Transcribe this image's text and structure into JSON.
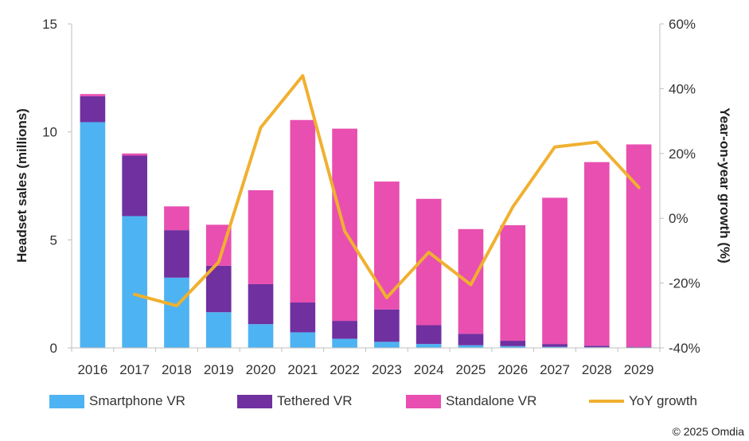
{
  "chart_data": {
    "type": "bar",
    "stacked": true,
    "categories": [
      "2016",
      "2017",
      "2018",
      "2019",
      "2020",
      "2021",
      "2022",
      "2023",
      "2024",
      "2025",
      "2026",
      "2027",
      "2028",
      "2029"
    ],
    "series": [
      {
        "name": "Smartphone VR",
        "color": "#4EB3F2",
        "values": [
          10.45,
          6.1,
          3.25,
          1.65,
          1.1,
          0.72,
          0.42,
          0.28,
          0.18,
          0.12,
          0.08,
          0.05,
          0.03,
          0.02
        ]
      },
      {
        "name": "Tethered VR",
        "color": "#7030A0",
        "values": [
          1.2,
          2.8,
          2.2,
          2.15,
          1.85,
          1.38,
          0.83,
          1.5,
          0.87,
          0.53,
          0.25,
          0.13,
          0.07,
          0.03
        ]
      },
      {
        "name": "Standalone VR",
        "color": "#E84FB0",
        "values": [
          0.1,
          0.1,
          1.1,
          1.9,
          4.35,
          8.45,
          8.9,
          5.92,
          5.85,
          4.85,
          5.35,
          6.77,
          8.5,
          9.37
        ]
      }
    ],
    "line_series": {
      "name": "YoY growth",
      "color": "#F0B030",
      "axis": "right",
      "values": [
        null,
        -23.5,
        -27,
        -13.5,
        28,
        44,
        -4,
        -24.5,
        -10.5,
        -20.5,
        3.5,
        22,
        23.5,
        9.5
      ]
    },
    "ylabel": "Headset sales (millions)",
    "ylim": [
      0,
      15
    ],
    "yticks": [
      "0",
      "5",
      "10",
      "15"
    ],
    "y2label": "Year-on-year growth (%)",
    "y2lim": [
      -40,
      60
    ],
    "y2ticks": [
      "-40%",
      "-20%",
      "0%",
      "20%",
      "40%",
      "60%"
    ],
    "legend_position": "bottom",
    "grid": false
  },
  "credit": "© 2025 Omdia"
}
